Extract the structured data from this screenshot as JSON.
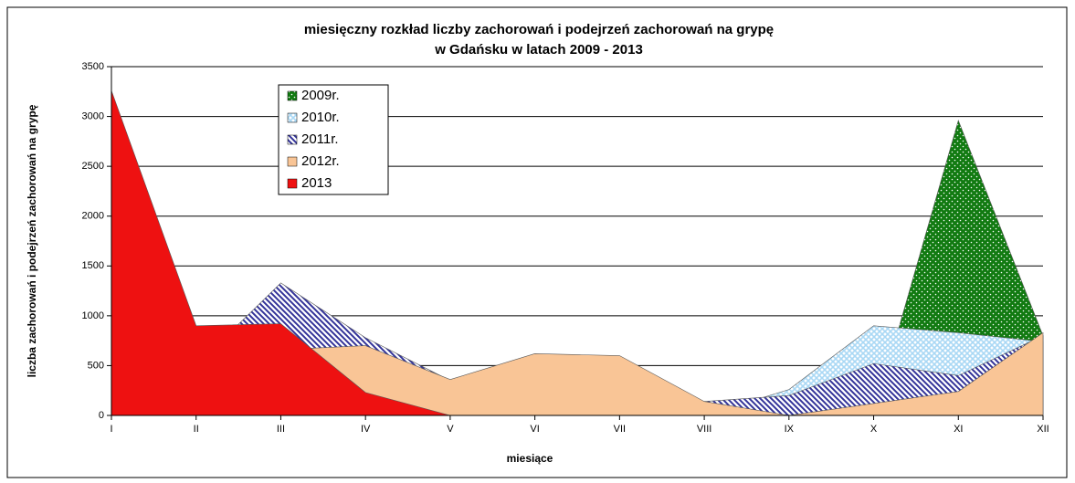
{
  "chart_data": {
    "type": "area",
    "title": "miesięczny rozkład liczby zachorowań i podejrzeń zachorowań na grypę",
    "subtitle": "w Gdańsku w latach 2009 - 2013",
    "y_label": "liczba zachorowań i podejrzeń zachorowań na grypę",
    "x_label": "miesiące",
    "categories": [
      "I",
      "II",
      "III",
      "IV",
      "V",
      "VI",
      "VII",
      "VIII",
      "IX",
      "X",
      "XI",
      "XII"
    ],
    "series": [
      {
        "name": "2009r.",
        "color": "#117a11",
        "values": [
          0,
          0,
          0,
          0,
          0,
          0,
          0,
          0,
          0,
          0,
          2960,
          800
        ]
      },
      {
        "name": "2010r.",
        "color": "#a9d8f5",
        "values": [
          0,
          0,
          0,
          0,
          0,
          0,
          0,
          0,
          260,
          900,
          830,
          740
        ]
      },
      {
        "name": "2011r.",
        "color": "#333399",
        "values": [
          0,
          500,
          1330,
          780,
          350,
          0,
          0,
          140,
          200,
          520,
          400,
          800
        ]
      },
      {
        "name": "2012r.",
        "color": "#f9c596",
        "values": [
          2000,
          850,
          660,
          700,
          360,
          620,
          600,
          140,
          0,
          120,
          240,
          830
        ]
      },
      {
        "name": "2013",
        "color": "#ee1111",
        "values": [
          3260,
          900,
          920,
          230,
          0,
          0,
          0,
          0,
          0,
          0,
          0,
          0
        ]
      }
    ],
    "ylim": [
      0,
      3500
    ],
    "yticks": [
      0,
      500,
      1000,
      1500,
      2000,
      2500,
      3000,
      3500
    ],
    "grid": true
  }
}
